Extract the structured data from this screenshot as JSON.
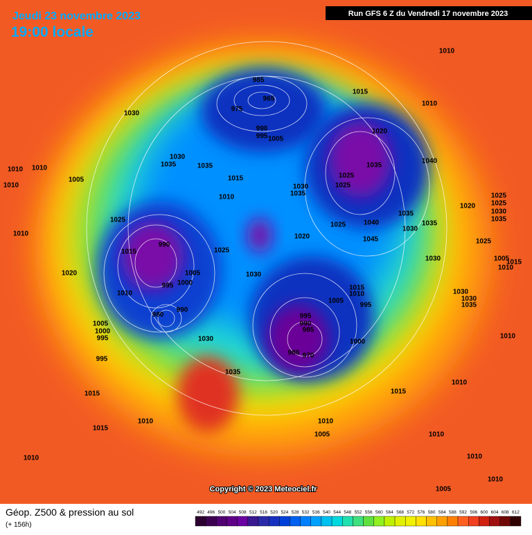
{
  "header": {
    "date": "Jeudi 23 novembre 2023",
    "time": "19:00 locale",
    "run": "Run GFS 6 Z du Vendredi 17 novembre 2023"
  },
  "copyright": "Copyright © 2023 Meteociel.fr",
  "footer": {
    "title": "Géop. Z500 & pression au sol",
    "lead": "(+ 156h)"
  },
  "scale": {
    "labels": [
      "492",
      "496",
      "500",
      "504",
      "508",
      "512",
      "516",
      "520",
      "524",
      "528",
      "532",
      "536",
      "540",
      "544",
      "548",
      "552",
      "556",
      "560",
      "564",
      "568",
      "572",
      "576",
      "580",
      "584",
      "588",
      "592",
      "596",
      "600",
      "604",
      "608",
      "612"
    ],
    "colors": [
      "#2b0030",
      "#3d0050",
      "#500070",
      "#600088",
      "#6a00a0",
      "#3a1890",
      "#2a2aa8",
      "#1830c0",
      "#0040d8",
      "#0060f0",
      "#0080ff",
      "#00a0ff",
      "#00c0f0",
      "#00d8e0",
      "#20e0b0",
      "#40e080",
      "#60e040",
      "#90f020",
      "#c0f000",
      "#e0f000",
      "#f0f000",
      "#ffe000",
      "#ffc000",
      "#ffa000",
      "#ff8000",
      "#ff6020",
      "#f04020",
      "#d02010",
      "#a01010",
      "#700808",
      "#300000"
    ]
  },
  "isobar_labels": [
    "1010",
    "1015",
    "1010",
    "985",
    "965",
    "975",
    "990",
    "995",
    "1005",
    "1020",
    "1030",
    "1030",
    "1035",
    "1035",
    "1040",
    "1010",
    "1010",
    "1010",
    "1005",
    "1015",
    "1030",
    "1035",
    "1025",
    "1025",
    "1035",
    "1010",
    "1025",
    "1020",
    "1025",
    "1025",
    "1030",
    "1035",
    "1035",
    "1040",
    "1025",
    "1030",
    "1035",
    "1045",
    "1020",
    "1010",
    "990",
    "1015",
    "1025",
    "1025",
    "1030",
    "1005",
    "1015",
    "1010",
    "1030",
    "1020",
    "1005",
    "1000",
    "995",
    "1010",
    "1015",
    "1010",
    "1005",
    "995",
    "1030",
    "1035",
    "1030",
    "990",
    "980",
    "995",
    "990",
    "985",
    "1005",
    "1000",
    "995",
    "1030",
    "1000",
    "1010",
    "980",
    "970",
    "995",
    "1035",
    "1010",
    "1015",
    "1015",
    "1010",
    "1010",
    "1015",
    "1010",
    "1005",
    "1010",
    "1010",
    "1010",
    "1005"
  ]
}
